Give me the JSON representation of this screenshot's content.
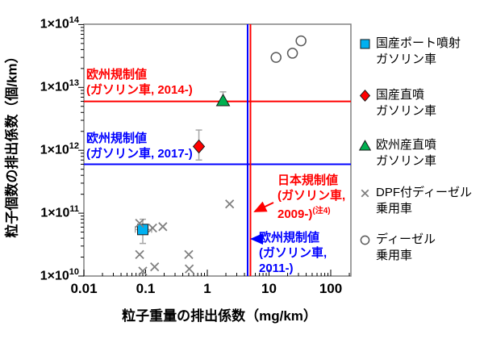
{
  "chart_data": {
    "type": "scatter",
    "x_axis": {
      "label": "粒子重量の排出係数（mg/km）",
      "scale": "log",
      "min": 0.01,
      "max": 250,
      "tick_values": [
        0.01,
        0.1,
        1,
        10,
        100
      ],
      "tick_labels": [
        "0.01",
        "0.1",
        "1",
        "10",
        "100"
      ]
    },
    "y_axis": {
      "label": "粒子個数の排出係数（個/km）",
      "scale": "log",
      "min": 10000000000.0,
      "max": 100000000000000.0,
      "ticks": [
        {
          "value": 100000000000000.0,
          "base": "1×10",
          "exp": "14"
        },
        {
          "value": 10000000000000.0,
          "base": "1×10",
          "exp": "13"
        },
        {
          "value": 1000000000000.0,
          "base": "1×10",
          "exp": "12"
        },
        {
          "value": 100000000000.0,
          "base": "1×10",
          "exp": "11"
        },
        {
          "value": 10000000000.0,
          "base": "1×10",
          "exp": "10"
        }
      ]
    },
    "series": [
      {
        "id": "port-injection-gasoline",
        "name": "国産ポート噴射ガソリン車",
        "marker": "square",
        "color": "#00B0F0",
        "points": [
          {
            "x": 0.09,
            "y": 55000000000.0,
            "xerr": [
              0.068,
              0.125
            ],
            "yerr": [
              33000000000.0,
              80000000000.0
            ]
          }
        ]
      },
      {
        "id": "direct-injection-gasoline",
        "name": "国産直噴ガソリン車",
        "marker": "diamond",
        "color": "#FF0000",
        "points": [
          {
            "x": 0.73,
            "y": 1150000000000.0,
            "yerr": [
              700000000000.0,
              2100000000000.0
            ]
          }
        ]
      },
      {
        "id": "euro-direct-injection-gasoline",
        "name": "欧州産直噴ガソリン車",
        "marker": "triangle",
        "color": "#00B050",
        "points": [
          {
            "x": 1.8,
            "y": 6200000000000.0,
            "yerr": [
              6200000000000.0,
              8500000000000.0
            ]
          }
        ]
      },
      {
        "id": "dpf-diesel",
        "name": "DPF付ディーゼル乗用車",
        "marker": "cross",
        "color": "#808080",
        "points": [
          {
            "x": 2.3,
            "y": 140000000000.0
          },
          {
            "x": 0.08,
            "y": 69000000000.0
          },
          {
            "x": 0.13,
            "y": 58000000000.0
          },
          {
            "x": 0.19,
            "y": 61000000000.0
          },
          {
            "x": 0.08,
            "y": 22000000000.0
          },
          {
            "x": 0.5,
            "y": 22000000000.0
          },
          {
            "x": 0.09,
            "y": 12000000000.0
          },
          {
            "x": 0.14,
            "y": 14000000000.0
          },
          {
            "x": 0.51,
            "y": 13000000000.0
          }
        ]
      },
      {
        "id": "diesel",
        "name": "ディーゼル乗用車",
        "marker": "circle",
        "color": "#595959",
        "points": [
          {
            "x": 13,
            "y": 30000000000000.0
          },
          {
            "x": 24,
            "y": 35000000000000.0
          },
          {
            "x": 33,
            "y": 55000000000000.0
          }
        ]
      }
    ],
    "reference_lines": [
      {
        "id": "eu-2014",
        "orientation": "horizontal",
        "value": 6000000000000.0,
        "color": "#FF0000"
      },
      {
        "id": "eu-2017",
        "orientation": "horizontal",
        "value": 600000000000.0,
        "color": "#0000FF"
      },
      {
        "id": "japan-2009",
        "orientation": "vertical",
        "value": 5,
        "color": "#FF0000"
      },
      {
        "id": "eu-2011",
        "orientation": "vertical",
        "value": 4.5,
        "color": "#0000FF"
      }
    ]
  },
  "annotations": [
    {
      "id": "eu-2014-label",
      "lines": [
        "欧州規制値",
        "(ガソリン車, 2014-)"
      ],
      "color": "#FF0000"
    },
    {
      "id": "eu-2017-label",
      "lines": [
        "欧州規制値",
        "(ガソリン車, 2017-)"
      ],
      "color": "#0000FF"
    },
    {
      "id": "japan-2009-label",
      "lines": [
        "日本規制値",
        "(ガソリン車,",
        "2009-)"
      ],
      "superscript": "(注4)",
      "color": "#FF0000"
    },
    {
      "id": "eu-2011-label",
      "lines": [
        "欧州規制値",
        "(ガソリン車,",
        "2011-)"
      ],
      "color": "#0000FF"
    }
  ],
  "legend": {
    "items": [
      {
        "marker": "square",
        "color": "#00B0F0",
        "lines": [
          "国産ポート噴射",
          "ガソリン車"
        ]
      },
      {
        "marker": "diamond",
        "color": "#FF0000",
        "lines": [
          "国産直噴",
          "ガソリン車"
        ]
      },
      {
        "marker": "triangle",
        "color": "#00B050",
        "lines": [
          "欧州産直噴",
          "ガソリン車"
        ]
      },
      {
        "marker": "cross",
        "color": "#808080",
        "lines": [
          "DPF付ディーゼル",
          "乗用車"
        ]
      },
      {
        "marker": "circle",
        "color": "#595959",
        "lines": [
          "ディーゼル",
          "乗用車"
        ]
      }
    ]
  }
}
